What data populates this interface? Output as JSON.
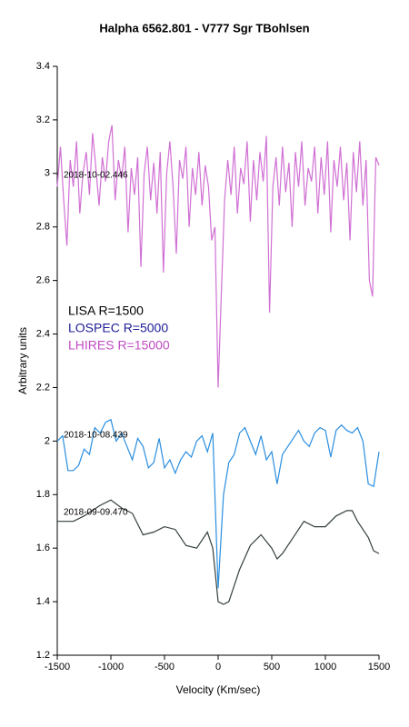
{
  "chart_data": {
    "type": "line",
    "title": "Halpha 6562.801 - V777 Sgr   TBohlsen",
    "x_label": "Velocity (Km/sec)",
    "y_label": "Arbitrary units",
    "xlim": [
      -1500,
      1500
    ],
    "xticks": [
      -1500,
      -1000,
      -500,
      0,
      500,
      1000,
      1500
    ],
    "ylim": [
      1.2,
      3.4
    ],
    "yticks": [
      1.2,
      1.4,
      1.6,
      1.8,
      2,
      2.2,
      2.4,
      2.6,
      2.8,
      3,
      3.2,
      3.4
    ],
    "grid": false,
    "annotations": [
      "2018-10-02.446",
      "2018-10-08.439",
      "2018-09-09.470"
    ],
    "series": [
      {
        "name": "LISA R=1500",
        "color": "#34403c",
        "label_color": "#000000",
        "x": [
          -1500,
          -1350,
          -1250,
          -1100,
          -1000,
          -900,
          -800,
          -700,
          -600,
          -500,
          -400,
          -300,
          -200,
          -100,
          -50,
          0,
          50,
          100,
          200,
          300,
          400,
          500,
          550,
          600,
          700,
          800,
          900,
          1000,
          1100,
          1200,
          1250,
          1300,
          1400,
          1450,
          1500
        ],
        "values": [
          1.7,
          1.7,
          1.72,
          1.76,
          1.78,
          1.75,
          1.73,
          1.65,
          1.66,
          1.68,
          1.67,
          1.61,
          1.6,
          1.66,
          1.6,
          1.4,
          1.39,
          1.4,
          1.52,
          1.61,
          1.65,
          1.6,
          1.56,
          1.58,
          1.64,
          1.7,
          1.68,
          1.68,
          1.72,
          1.74,
          1.74,
          1.7,
          1.64,
          1.59,
          1.58
        ]
      },
      {
        "name": "LOSPEC R=5000",
        "color": "#2a8ee0",
        "label_color": "#1c1c96",
        "x": [
          -1500,
          -1450,
          -1400,
          -1350,
          -1300,
          -1250,
          -1200,
          -1150,
          -1100,
          -1050,
          -1000,
          -950,
          -900,
          -850,
          -800,
          -750,
          -700,
          -650,
          -600,
          -550,
          -500,
          -450,
          -400,
          -350,
          -300,
          -250,
          -200,
          -150,
          -100,
          -50,
          0,
          50,
          100,
          150,
          200,
          250,
          300,
          350,
          400,
          450,
          500,
          550,
          600,
          650,
          700,
          750,
          800,
          850,
          900,
          950,
          1000,
          1050,
          1100,
          1150,
          1200,
          1250,
          1300,
          1350,
          1400,
          1450,
          1500
        ],
        "values": [
          2.0,
          2.02,
          1.89,
          1.89,
          1.91,
          1.97,
          1.95,
          2.05,
          2.03,
          2.07,
          2.08,
          2.0,
          2.03,
          1.98,
          1.93,
          2.01,
          1.98,
          1.9,
          1.92,
          2.01,
          1.9,
          1.93,
          1.88,
          1.93,
          1.96,
          1.94,
          2.0,
          2.02,
          1.96,
          2.03,
          1.45,
          1.8,
          1.92,
          1.95,
          2.03,
          2.05,
          2.0,
          1.95,
          2.02,
          1.93,
          1.96,
          1.84,
          1.95,
          1.98,
          2.01,
          2.04,
          2.0,
          1.98,
          2.03,
          2.05,
          2.04,
          1.94,
          2.04,
          2.06,
          2.04,
          2.03,
          2.05,
          2.0,
          1.84,
          1.83,
          1.96
        ]
      },
      {
        "name": "LHIRES R=15000",
        "color": "#d070d4",
        "label_color": "#c04cc4",
        "x": [
          -1500,
          -1470,
          -1440,
          -1410,
          -1380,
          -1350,
          -1320,
          -1290,
          -1260,
          -1230,
          -1200,
          -1170,
          -1140,
          -1110,
          -1080,
          -1050,
          -1020,
          -990,
          -960,
          -930,
          -900,
          -870,
          -840,
          -810,
          -780,
          -750,
          -720,
          -690,
          -660,
          -630,
          -600,
          -570,
          -540,
          -510,
          -480,
          -450,
          -420,
          -390,
          -360,
          -330,
          -300,
          -270,
          -240,
          -210,
          -180,
          -150,
          -120,
          -90,
          -60,
          -30,
          0,
          30,
          60,
          90,
          120,
          150,
          180,
          210,
          240,
          270,
          300,
          330,
          360,
          390,
          420,
          450,
          480,
          510,
          540,
          570,
          600,
          630,
          660,
          690,
          720,
          750,
          780,
          810,
          840,
          870,
          900,
          930,
          960,
          990,
          1020,
          1050,
          1080,
          1110,
          1140,
          1170,
          1200,
          1230,
          1260,
          1290,
          1320,
          1350,
          1380,
          1410,
          1440,
          1470,
          1500
        ],
        "values": [
          2.95,
          3.1,
          2.9,
          2.73,
          3.05,
          2.95,
          3.12,
          2.85,
          3.0,
          3.08,
          2.92,
          3.15,
          3.02,
          2.88,
          3.06,
          2.97,
          3.12,
          3.18,
          2.9,
          3.05,
          2.98,
          3.1,
          2.78,
          3.02,
          2.92,
          3.06,
          2.65,
          3.0,
          3.1,
          2.9,
          3.04,
          2.85,
          3.08,
          2.63,
          3.0,
          3.12,
          2.95,
          2.7,
          3.05,
          2.98,
          3.1,
          2.8,
          3.02,
          2.92,
          3.08,
          2.88,
          3.03,
          2.95,
          2.75,
          2.8,
          2.2,
          2.55,
          2.9,
          3.05,
          2.92,
          3.1,
          2.85,
          3.02,
          2.96,
          3.12,
          2.82,
          3.05,
          2.9,
          3.08,
          2.97,
          3.14,
          2.48,
          2.95,
          3.06,
          2.88,
          3.1,
          2.93,
          3.04,
          2.8,
          3.08,
          2.95,
          3.12,
          2.88,
          3.02,
          2.97,
          3.1,
          2.85,
          3.06,
          2.92,
          3.12,
          2.78,
          3.05,
          2.95,
          3.1,
          2.9,
          3.04,
          2.75,
          3.08,
          2.93,
          3.12,
          2.88,
          3.05,
          2.6,
          2.54,
          3.06,
          3.03
        ]
      }
    ]
  }
}
